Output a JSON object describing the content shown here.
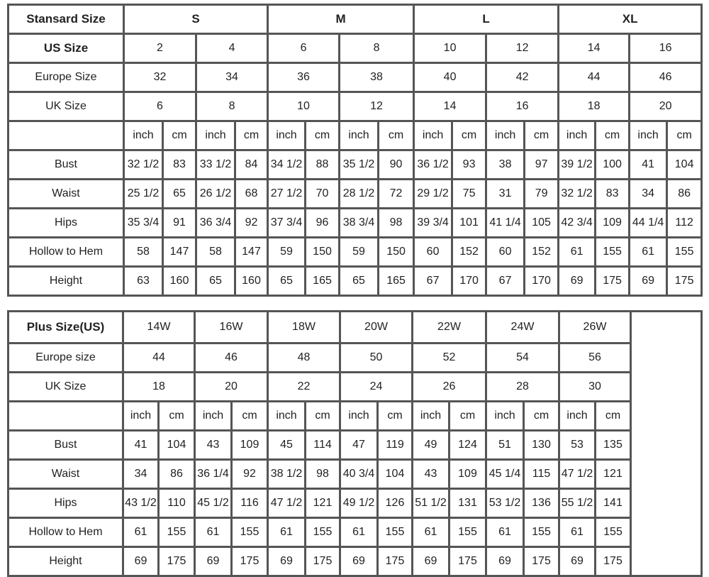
{
  "standard": {
    "header_label": "Stansard Size",
    "groups": [
      "S",
      "M",
      "L",
      "XL"
    ],
    "us_label": "US Size",
    "us": [
      "2",
      "4",
      "6",
      "8",
      "10",
      "12",
      "14",
      "16"
    ],
    "europe_label": "Europe Size",
    "europe": [
      "32",
      "34",
      "36",
      "38",
      "40",
      "42",
      "44",
      "46"
    ],
    "uk_label": "UK Size",
    "uk": [
      "6",
      "8",
      "10",
      "12",
      "14",
      "16",
      "18",
      "20"
    ],
    "unit_inch": "inch",
    "unit_cm": "cm",
    "measurements": [
      {
        "label": "Bust",
        "values": [
          "32 1/2",
          "83",
          "33 1/2",
          "84",
          "34 1/2",
          "88",
          "35 1/2",
          "90",
          "36 1/2",
          "93",
          "38",
          "97",
          "39 1/2",
          "100",
          "41",
          "104"
        ]
      },
      {
        "label": "Waist",
        "values": [
          "25 1/2",
          "65",
          "26 1/2",
          "68",
          "27 1/2",
          "70",
          "28 1/2",
          "72",
          "29 1/2",
          "75",
          "31",
          "79",
          "32 1/2",
          "83",
          "34",
          "86"
        ]
      },
      {
        "label": "Hips",
        "values": [
          "35 3/4",
          "91",
          "36 3/4",
          "92",
          "37 3/4",
          "96",
          "38 3/4",
          "98",
          "39 3/4",
          "101",
          "41 1/4",
          "105",
          "42 3/4",
          "109",
          "44 1/4",
          "112"
        ]
      },
      {
        "label": "Hollow to Hem",
        "values": [
          "58",
          "147",
          "58",
          "147",
          "59",
          "150",
          "59",
          "150",
          "60",
          "152",
          "60",
          "152",
          "61",
          "155",
          "61",
          "155"
        ]
      },
      {
        "label": "Height",
        "values": [
          "63",
          "160",
          "65",
          "160",
          "65",
          "165",
          "65",
          "165",
          "67",
          "170",
          "67",
          "170",
          "69",
          "175",
          "69",
          "175"
        ]
      }
    ]
  },
  "plus": {
    "header_label": "Plus Size(US)",
    "sizes": [
      "14W",
      "16W",
      "18W",
      "20W",
      "22W",
      "24W",
      "26W"
    ],
    "europe_label": "Europe size",
    "europe": [
      "44",
      "46",
      "48",
      "50",
      "52",
      "54",
      "56"
    ],
    "uk_label": "UK Size",
    "uk": [
      "18",
      "20",
      "22",
      "24",
      "26",
      "28",
      "30"
    ],
    "unit_inch": "inch",
    "unit_cm": "cm",
    "measurements": [
      {
        "label": "Bust",
        "values": [
          "41",
          "104",
          "43",
          "109",
          "45",
          "114",
          "47",
          "119",
          "49",
          "124",
          "51",
          "130",
          "53",
          "135"
        ]
      },
      {
        "label": "Waist",
        "values": [
          "34",
          "86",
          "36 1/4",
          "92",
          "38 1/2",
          "98",
          "40 3/4",
          "104",
          "43",
          "109",
          "45 1/4",
          "115",
          "47 1/2",
          "121"
        ]
      },
      {
        "label": "Hips",
        "values": [
          "43 1/2",
          "110",
          "45 1/2",
          "116",
          "47 1/2",
          "121",
          "49 1/2",
          "126",
          "51 1/2",
          "131",
          "53 1/2",
          "136",
          "55 1/2",
          "141"
        ]
      },
      {
        "label": "Hollow to Hem",
        "values": [
          "61",
          "155",
          "61",
          "155",
          "61",
          "155",
          "61",
          "155",
          "61",
          "155",
          "61",
          "155",
          "61",
          "155"
        ]
      },
      {
        "label": "Height",
        "values": [
          "69",
          "175",
          "69",
          "175",
          "69",
          "175",
          "69",
          "175",
          "69",
          "175",
          "69",
          "175",
          "69",
          "175"
        ]
      }
    ]
  }
}
